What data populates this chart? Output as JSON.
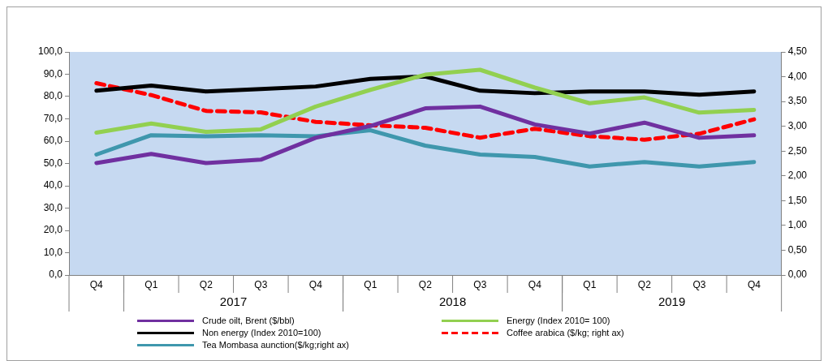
{
  "chart_data": {
    "type": "line",
    "categories": [
      "Q4",
      "Q1",
      "Q2",
      "Q3",
      "Q4",
      "Q1",
      "Q2",
      "Q3",
      "Q4",
      "Q1",
      "Q2",
      "Q3",
      "Q4"
    ],
    "annotations": [
      "2017",
      "2018",
      "2019"
    ],
    "ylim": [
      0,
      100
    ],
    "yticks": [
      {
        "value": 0,
        "label": "0,0"
      },
      {
        "value": 10,
        "label": "10,0"
      },
      {
        "value": 20,
        "label": "20,0"
      },
      {
        "value": 30,
        "label": "30,0"
      },
      {
        "value": 40,
        "label": "40,0"
      },
      {
        "value": 50,
        "label": "50,0"
      },
      {
        "value": 60,
        "label": "60,0"
      },
      {
        "value": 70,
        "label": "70,0"
      },
      {
        "value": 80,
        "label": "80,0"
      },
      {
        "value": 90,
        "label": "90,0"
      },
      {
        "value": 100,
        "label": "100,0"
      }
    ],
    "y2lim": [
      0,
      4.5
    ],
    "y2ticks": [
      {
        "value": 0,
        "label": "0,00"
      },
      {
        "value": 0.5,
        "label": "0,50"
      },
      {
        "value": 1,
        "label": "1,00"
      },
      {
        "value": 1.5,
        "label": "1,50"
      },
      {
        "value": 2,
        "label": "2,00"
      },
      {
        "value": 2.5,
        "label": "2,50"
      },
      {
        "value": 3,
        "label": "3,00"
      },
      {
        "value": 3.5,
        "label": "3,50"
      },
      {
        "value": 4,
        "label": "4,00"
      },
      {
        "value": 4.5,
        "label": "4,50"
      }
    ],
    "grid": false,
    "legend": "bottom",
    "marker": "none",
    "series": [
      {
        "name": "Crude oilt, Brent ($/bbl)",
        "color": "#7030a0",
        "values": [
          50.2,
          54.3,
          50.2,
          51.7,
          61.5,
          66.8,
          74.7,
          75.5,
          67.5,
          63.4,
          68.3,
          61.5,
          62.6
        ]
      },
      {
        "name": "Energy (Index 2010= 100)",
        "color": "#92d050",
        "values": [
          63.8,
          67.9,
          64.2,
          65.3,
          75.5,
          83,
          89.8,
          92,
          84,
          77,
          79.6,
          72.8,
          74
        ]
      },
      {
        "name": "Non energy (Index 2010=100)",
        "color": "#000000",
        "values": [
          82.6,
          84.9,
          82.3,
          83.4,
          84.5,
          87.9,
          89,
          82.6,
          81.5,
          82.3,
          82.3,
          80.8,
          82.3
        ]
      },
      {
        "name": "Coffee arabica ($/kg; right ax)",
        "color": "#ff0000",
        "axis": "y2",
        "line_style": "dashed",
        "values": [
          3.87,
          3.63,
          3.31,
          3.28,
          3.09,
          3.02,
          2.97,
          2.77,
          2.95,
          2.8,
          2.73,
          2.85,
          3.14
        ]
      },
      {
        "name": "Tea Mombasa aunction($/kg;right ax)",
        "color": "#3f97ad",
        "axis": "y2",
        "values": [
          2.43,
          2.82,
          2.8,
          2.82,
          2.8,
          2.92,
          2.61,
          2.43,
          2.38,
          2.19,
          2.28,
          2.19,
          2.28
        ]
      }
    ]
  }
}
